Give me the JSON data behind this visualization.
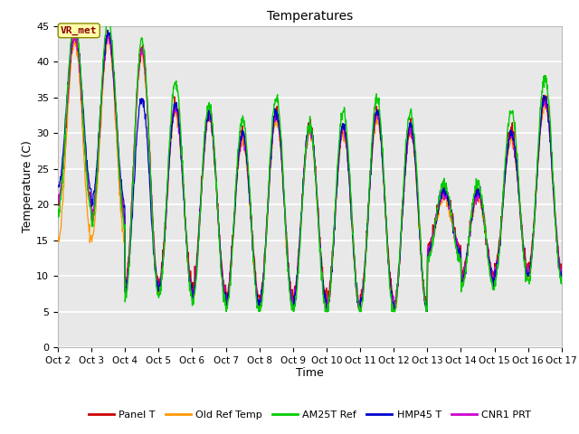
{
  "title": "Temperatures",
  "xlabel": "Time",
  "ylabel": "Temperature (C)",
  "ylim": [
    0,
    45
  ],
  "xlim": [
    0,
    15
  ],
  "x_tick_labels": [
    "Oct 2",
    "Oct 3",
    "Oct 4",
    "Oct 5",
    "Oct 6",
    "Oct 7",
    "Oct 8",
    "Oct 9",
    "Oct 10",
    "Oct 11",
    "Oct 12",
    "Oct 13",
    "Oct 14",
    "Oct 15",
    "Oct 16",
    "Oct 17"
  ],
  "colors": {
    "Panel T": "#cc0000",
    "Old Ref Temp": "#ff9900",
    "AM25T Ref": "#00cc00",
    "HMP45 T": "#0000cc",
    "CNR1 PRT": "#cc00cc"
  },
  "annotation_text": "VR_met",
  "plot_bg_light": "#e8e8e8",
  "plot_bg_dark": "#d8d8d8",
  "day_maxima": [
    44,
    44,
    42,
    34,
    33,
    30,
    33,
    31,
    31,
    33,
    31,
    22,
    22,
    30,
    35
  ],
  "day_minima": [
    20,
    18,
    8,
    8,
    7,
    6,
    6,
    6,
    5,
    6,
    5,
    13,
    9,
    10,
    10
  ],
  "am25t_extra_max": [
    2,
    2,
    1,
    3,
    1,
    2,
    2,
    0,
    2,
    2,
    2,
    1,
    1,
    3,
    3
  ],
  "hmp45_peak_day2": 35,
  "legend_entries": [
    "Panel T",
    "Old Ref Temp",
    "AM25T Ref",
    "HMP45 T",
    "CNR1 PRT"
  ]
}
